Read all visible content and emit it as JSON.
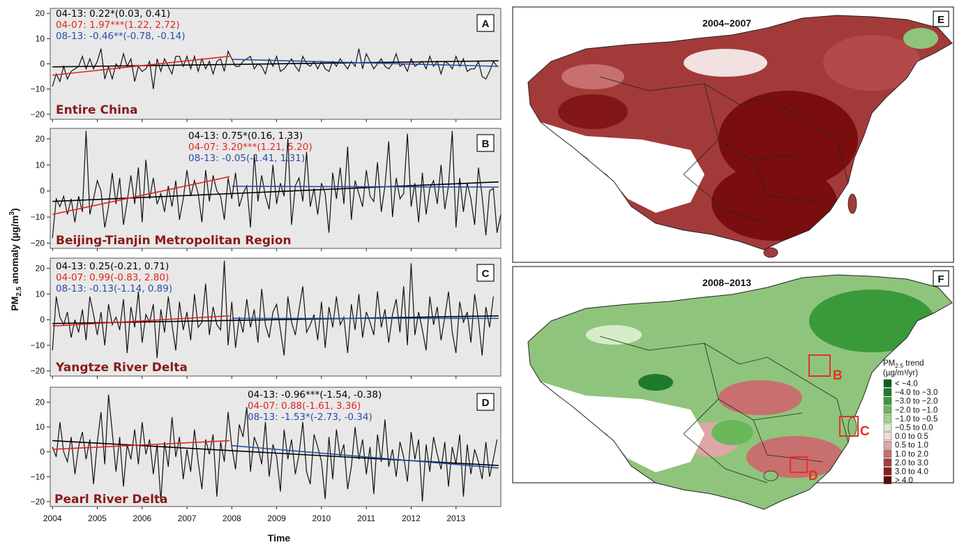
{
  "chart_data": [
    {
      "type": "line",
      "panel": "A",
      "region": "Entire China",
      "x_ticks": [
        "2004",
        "2005",
        "2006",
        "2007",
        "2008",
        "2009",
        "2010",
        "2011",
        "2012",
        "2013"
      ],
      "y_ticks": [
        20,
        10,
        0,
        -10,
        -20
      ],
      "ylim": [
        -22,
        22
      ],
      "xlim": [
        2003.95,
        2014.0
      ],
      "background": "#e8e8e8",
      "stats": [
        {
          "label": "04-13: 0.22*(0.03, 0.41)",
          "color": "#000000"
        },
        {
          "label": "04-07: 1.97***(1.22, 2.72)",
          "color": "#e0261b"
        },
        {
          "label": "08-13: -0.46**(-0.78, -0.14)",
          "color": "#2b4ba8"
        }
      ],
      "trends": [
        {
          "name": "04-13",
          "color": "#000000",
          "x": [
            2004.0,
            2013.95
          ],
          "y": [
            -1.2,
            1.2
          ]
        },
        {
          "name": "04-07",
          "color": "#e0261b",
          "x": [
            2004.0,
            2007.95
          ],
          "y": [
            -4.5,
            3.0
          ]
        },
        {
          "name": "08-13",
          "color": "#2b4ba8",
          "x": [
            2008.0,
            2013.95
          ],
          "y": [
            1.8,
            -1.0
          ]
        }
      ],
      "anomaly": [
        -9,
        -4,
        -7,
        -1,
        -6,
        -3,
        -2,
        -1,
        3,
        -2,
        2,
        -2,
        1,
        6,
        -6,
        -1,
        -6,
        0,
        -2,
        4,
        -1,
        2,
        -7,
        -1,
        -3,
        -2,
        1,
        -10,
        2,
        -3,
        2,
        -1,
        -4,
        3,
        3,
        -1,
        3,
        -2,
        3,
        -3,
        2,
        -2,
        1,
        -4,
        1,
        2,
        -3,
        5,
        2,
        -1,
        -1,
        1,
        2,
        3,
        -2,
        0,
        -1,
        -4,
        2,
        -1,
        3,
        -3,
        -2,
        0,
        2,
        -1,
        -3,
        3,
        0,
        -1,
        1,
        -2,
        1,
        -2,
        -3,
        1,
        -1,
        2,
        0,
        -2,
        1,
        -1,
        6,
        -2,
        4,
        1,
        -2,
        0,
        2,
        -1,
        -2,
        0,
        4,
        -1,
        0,
        -3,
        2,
        -1,
        0,
        1,
        -2,
        3,
        -1,
        1,
        -4,
        1,
        0,
        -2,
        3,
        -1,
        2,
        -3,
        -2,
        -2,
        1,
        -5,
        -6,
        -3,
        1,
        -1
      ]
    },
    {
      "type": "line",
      "panel": "B",
      "region": "Beijing-Tianjin Metropolitan Region",
      "x_ticks": [
        "2004",
        "2005",
        "2006",
        "2007",
        "2008",
        "2009",
        "2010",
        "2011",
        "2012",
        "2013"
      ],
      "y_ticks": [
        20,
        10,
        0,
        -10,
        -20
      ],
      "ylim": [
        -22,
        24
      ],
      "xlim": [
        2003.95,
        2014.0
      ],
      "background": "#e8e8e8",
      "stats": [
        {
          "label": "04-13: 0.75*(0.16, 1.33)",
          "color": "#000000"
        },
        {
          "label": "04-07: 3.20***(1.21, 5.20)",
          "color": "#e0261b"
        },
        {
          "label": "08-13: -0.05(-1.41, 1.31)",
          "color": "#2b4ba8"
        }
      ],
      "trends": [
        {
          "name": "04-13",
          "color": "#000000",
          "x": [
            2004.0,
            2013.95
          ],
          "y": [
            -4.0,
            3.5
          ]
        },
        {
          "name": "04-07",
          "color": "#e0261b",
          "x": [
            2004.0,
            2007.95
          ],
          "y": [
            -9.0,
            5.5
          ]
        },
        {
          "name": "08-13",
          "color": "#2b4ba8",
          "x": [
            2008.0,
            2013.95
          ],
          "y": [
            1.8,
            1.5
          ]
        }
      ],
      "anomaly": [
        -18,
        -3,
        -6,
        -2,
        -9,
        -3,
        -12,
        -2,
        -8,
        23,
        -9,
        -3,
        4,
        0,
        -14,
        -6,
        7,
        -5,
        5,
        -13,
        -4,
        6,
        -5,
        9,
        -12,
        12,
        -3,
        5,
        -5,
        -1,
        -8,
        2,
        -6,
        4,
        -11,
        -3,
        8,
        -2,
        4,
        -1,
        -12,
        8,
        -4,
        6,
        0,
        -2,
        -11,
        5,
        -3,
        7,
        -6,
        -1,
        2,
        -14,
        14,
        -4,
        6,
        -2,
        -7,
        10,
        -5,
        3,
        -2,
        20,
        -13,
        2,
        5,
        -4,
        15,
        -6,
        1,
        -9,
        3,
        -1,
        -16,
        7,
        -3,
        9,
        -5,
        17,
        -11,
        4,
        -1,
        -6,
        8,
        -2,
        -4,
        11,
        -8,
        2,
        19,
        -10,
        5,
        -3,
        -1,
        22,
        -6,
        3,
        -12,
        7,
        -9,
        1,
        4,
        -5,
        10,
        -7,
        2,
        23,
        -14,
        5,
        -8,
        3,
        -3,
        -13,
        9,
        -2,
        -17,
        0,
        1,
        -16,
        -9
      ]
    },
    {
      "type": "line",
      "panel": "C",
      "region": "Yangtze River Delta",
      "x_ticks": [
        "2004",
        "2005",
        "2006",
        "2007",
        "2008",
        "2009",
        "2010",
        "2011",
        "2012",
        "2013"
      ],
      "y_ticks": [
        20,
        10,
        0,
        -10,
        -20
      ],
      "ylim": [
        -22,
        24
      ],
      "xlim": [
        2003.95,
        2014.0
      ],
      "background": "#e8e8e8",
      "stats": [
        {
          "label": "04-13: 0.25(-0.21, 0.71)",
          "color": "#000000"
        },
        {
          "label": "04-07: 0.99(-0.83, 2.80)",
          "color": "#e0261b"
        },
        {
          "label": "08-13: -0.13(-1.14, 0.89)",
          "color": "#2b4ba8"
        }
      ],
      "trends": [
        {
          "name": "04-13",
          "color": "#000000",
          "x": [
            2004.0,
            2013.95
          ],
          "y": [
            -1.5,
            1.5
          ]
        },
        {
          "name": "04-07",
          "color": "#e0261b",
          "x": [
            2004.0,
            2007.95
          ],
          "y": [
            -2.5,
            1.5
          ]
        },
        {
          "name": "08-13",
          "color": "#2b4ba8",
          "x": [
            2008.0,
            2013.95
          ],
          "y": [
            0.5,
            0.5
          ]
        }
      ],
      "anomaly": [
        -12,
        9,
        1,
        -2,
        3,
        -7,
        0,
        -5,
        4,
        -8,
        9,
        2,
        -6,
        3,
        -10,
        6,
        -2,
        1,
        -4,
        8,
        -13,
        5,
        -3,
        11,
        -9,
        2,
        -1,
        6,
        -15,
        4,
        -5,
        9,
        -2,
        -12,
        7,
        -4,
        3,
        -8,
        10,
        -3,
        -1,
        14,
        -6,
        5,
        -2,
        -4,
        23,
        -10,
        7,
        -11,
        1,
        -5,
        8,
        -3,
        4,
        -9,
        12,
        -2,
        -7,
        3,
        6,
        -4,
        -14,
        9,
        -1,
        -6,
        4,
        13,
        -5,
        -2,
        2,
        -8,
        7,
        -11,
        5,
        -3,
        9,
        -2,
        1,
        -13,
        6,
        -4,
        10,
        -7,
        3,
        -1,
        -6,
        11,
        -3,
        4,
        -9,
        2,
        8,
        -5,
        13,
        -10,
        22,
        -6,
        3,
        -4,
        -12,
        9,
        -2,
        5,
        -8,
        1,
        11,
        -5,
        -13,
        7,
        -1,
        3,
        -9,
        10,
        0,
        -14,
        5,
        -3,
        9
      ]
    },
    {
      "type": "line",
      "panel": "D",
      "region": "Pearl River Delta",
      "x_ticks": [
        "2004",
        "2005",
        "2006",
        "2007",
        "2008",
        "2009",
        "2010",
        "2011",
        "2012",
        "2013"
      ],
      "y_ticks": [
        20,
        10,
        0,
        -10,
        -20
      ],
      "ylim": [
        -22,
        26
      ],
      "xlim": [
        2003.95,
        2014.0
      ],
      "background": "#e8e8e8",
      "stats": [
        {
          "label": "04-13: -0.96***(-1.54, -0.38)",
          "color": "#000000"
        },
        {
          "label": "04-07: 0.88(-1.61, 3.36)",
          "color": "#e0261b"
        },
        {
          "label": "08-13: -1.53*(-2.73, -0.34)",
          "color": "#2b4ba8"
        }
      ],
      "trends": [
        {
          "name": "04-13",
          "color": "#000000",
          "x": [
            2004.0,
            2013.95
          ],
          "y": [
            4.5,
            -5.5
          ]
        },
        {
          "name": "04-07",
          "color": "#e0261b",
          "x": [
            2004.0,
            2007.95
          ],
          "y": [
            1.0,
            4.5
          ]
        },
        {
          "name": "08-13",
          "color": "#2b4ba8",
          "x": [
            2008.0,
            2013.95
          ],
          "y": [
            2.5,
            -6.5
          ]
        }
      ],
      "anomaly": [
        2,
        -2,
        12,
        0,
        -4,
        6,
        -9,
        2,
        8,
        -3,
        5,
        -13,
        4,
        16,
        -5,
        23,
        8,
        -8,
        6,
        -14,
        3,
        -3,
        9,
        -5,
        12,
        -1,
        5,
        -9,
        3,
        -20,
        4,
        -6,
        14,
        -2,
        6,
        -11,
        1,
        -8,
        9,
        -4,
        -15,
        5,
        -1,
        7,
        -18,
        4,
        -4,
        16,
        2,
        -7,
        11,
        6,
        18,
        -8,
        6,
        2,
        -5,
        12,
        -10,
        3,
        -2,
        -16,
        9,
        -3,
        5,
        -9,
        -1,
        12,
        -8,
        -13,
        7,
        2,
        -4,
        -19,
        6,
        -11,
        9,
        -2,
        3,
        -15,
        -6,
        10,
        -3,
        5,
        -9,
        2,
        -17,
        7,
        -4,
        13,
        -6,
        1,
        -10,
        4,
        -2,
        -12,
        8,
        -3,
        5,
        -20,
        3,
        -8,
        6,
        -1,
        -7,
        4,
        -14,
        2,
        -5,
        7,
        -18,
        3,
        -9,
        1,
        -4,
        -11,
        4,
        -10,
        -3,
        5
      ]
    }
  ],
  "figure": {
    "y_axis_title": "PM2.5 anomaly (µg/m³)",
    "x_axis_title": "Time",
    "panel_letters": [
      "A",
      "B",
      "C",
      "D"
    ]
  },
  "maps": [
    {
      "letter": "E",
      "title": "2004–2007"
    },
    {
      "letter": "F",
      "title": "2008–2013"
    }
  ],
  "map_boxes": [
    "B",
    "C",
    "D"
  ],
  "legend": {
    "title_line1": "PM2.5 trend",
    "title_line2": "(µg/m³/yr)",
    "items": [
      {
        "label": "< −4.0",
        "color": "#0b5d1e"
      },
      {
        "label": "−4.0 to −3.0",
        "color": "#1f7a2c"
      },
      {
        "label": "−3.0 to −2.0",
        "color": "#3a9a3a"
      },
      {
        "label": "−2.0 to −1.0",
        "color": "#6bb85b"
      },
      {
        "label": "−1.0 to −0.5",
        "color": "#a3d18e"
      },
      {
        "label": "−0.5 to 0.0",
        "color": "#d6ecc9"
      },
      {
        "label": "0.0 to 0.5",
        "color": "#f2dcdc"
      },
      {
        "label": "0.5 to 1.0",
        "color": "#dea6a6"
      },
      {
        "label": "1.0 to 2.0",
        "color": "#c86f6f"
      },
      {
        "label": "2.0 to 3.0",
        "color": "#a83c3c"
      },
      {
        "label": "3.0 to 4.0",
        "color": "#8a1e1e"
      },
      {
        "label": "> 4.0",
        "color": "#5e0a0a"
      }
    ]
  }
}
